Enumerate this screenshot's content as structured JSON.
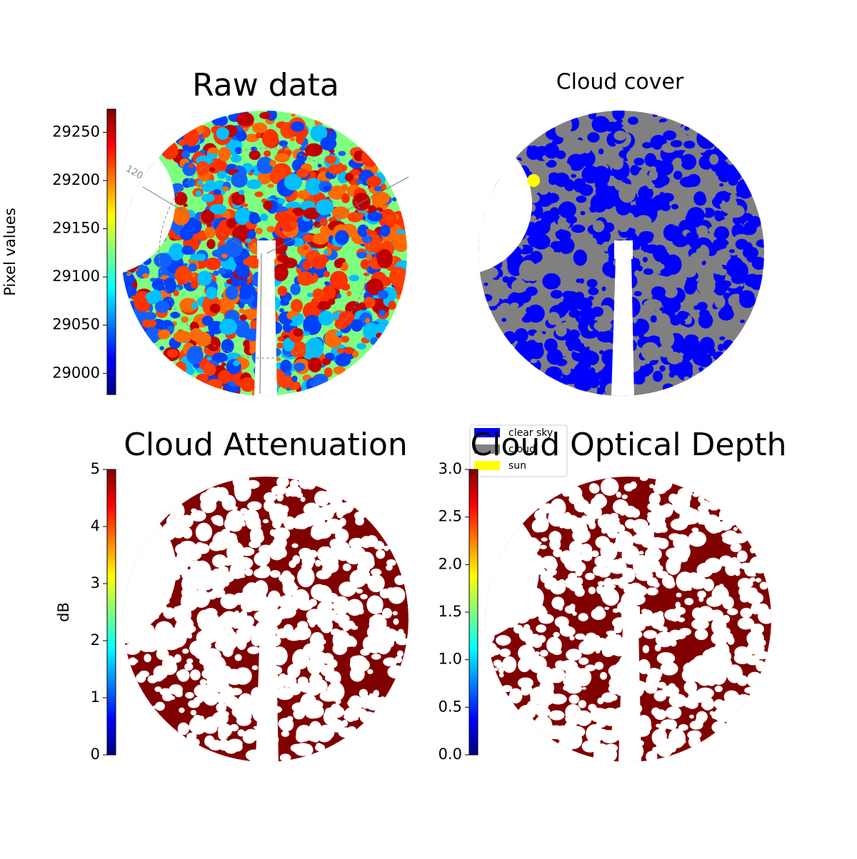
{
  "chart_data": [
    {
      "type": "image",
      "title": "Raw data",
      "ylabel": "Pixel values",
      "colormap": "jet",
      "ylim": [
        28978,
        29274
      ],
      "yticks": [
        29000,
        29050,
        29100,
        29150,
        29200,
        29250
      ],
      "annotations": [
        "120"
      ]
    },
    {
      "type": "categorical-image",
      "title": "Cloud cover",
      "categories": [
        "clear sky",
        "cloud",
        "sun"
      ],
      "colors": [
        "#0000ff",
        "#808080",
        "#ffff00"
      ]
    },
    {
      "type": "image",
      "title": "Cloud Attenuation",
      "ylabel": "dB",
      "colormap": "jet",
      "ylim": [
        0,
        5
      ],
      "yticks": [
        0,
        1,
        2,
        3,
        4,
        5
      ]
    },
    {
      "type": "image",
      "title": "Cloud Optical Depth",
      "colormap": "jet",
      "ylim": [
        0,
        3
      ],
      "yticks": [
        {
          "value": 0,
          "label": "0.0"
        },
        0.5,
        {
          "value": 1,
          "label": "1.0"
        },
        1.5,
        {
          "value": 2,
          "label": "2.0"
        },
        2.5,
        {
          "value": 3,
          "label": "3.0"
        }
      ]
    }
  ]
}
